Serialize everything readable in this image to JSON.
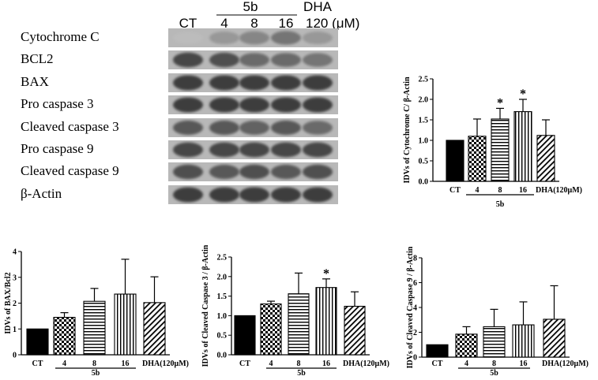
{
  "blot": {
    "header": {
      "ct": "CT",
      "group": "5b",
      "doses": [
        "4",
        "8",
        "16"
      ],
      "dha": "DHA",
      "dha_dose": "120 (μM)"
    },
    "rows": [
      "Cytochrome C",
      "BCL2",
      "BAX",
      "Pro caspase 3",
      "Cleaved caspase 3",
      "Pro caspase 9",
      "Cleaved caspase 9",
      "β-Actin"
    ],
    "band_intensity": [
      [
        0.15,
        0.35,
        0.45,
        0.55,
        0.35
      ],
      [
        0.8,
        0.75,
        0.6,
        0.6,
        0.55
      ],
      [
        0.85,
        0.85,
        0.85,
        0.85,
        0.85
      ],
      [
        0.85,
        0.85,
        0.85,
        0.85,
        0.85
      ],
      [
        0.7,
        0.7,
        0.65,
        0.7,
        0.6
      ],
      [
        0.8,
        0.8,
        0.8,
        0.8,
        0.8
      ],
      [
        0.75,
        0.7,
        0.75,
        0.7,
        0.75
      ],
      [
        0.85,
        0.85,
        0.85,
        0.85,
        0.85
      ]
    ]
  },
  "chart_data": [
    {
      "type": "bar",
      "ylabel": "IDVs of Cytochrome C/ β-Actin",
      "categories": [
        "CT",
        "4",
        "8",
        "16",
        "DHA(120μM)"
      ],
      "group_label": "5b",
      "values": [
        1.0,
        1.1,
        1.52,
        1.7,
        1.12
      ],
      "errors": [
        0,
        0.42,
        0.26,
        0.3,
        0.38
      ],
      "significant": [
        false,
        false,
        true,
        true,
        false
      ],
      "ylim": [
        0,
        2.5
      ],
      "yticks": [
        "0.0",
        "0.5",
        "1.0",
        "1.5",
        "2.0",
        "2.5"
      ],
      "patterns": [
        "solid",
        "checker",
        "hlines",
        "vlines",
        "diagonal"
      ]
    },
    {
      "type": "bar",
      "ylabel": "IDVs of BAX/Bcl2",
      "categories": [
        "CT",
        "4",
        "8",
        "16",
        "DHA(120μM)"
      ],
      "group_label": "5b",
      "values": [
        1.0,
        1.45,
        2.07,
        2.35,
        2.02
      ],
      "errors": [
        0,
        0.18,
        0.5,
        1.35,
        1.0
      ],
      "significant": [
        false,
        false,
        false,
        false,
        false
      ],
      "ylim": [
        0,
        4
      ],
      "yticks": [
        "0",
        "1",
        "2",
        "3",
        "4"
      ],
      "patterns": [
        "solid",
        "checker",
        "hlines",
        "vlines",
        "diagonal"
      ]
    },
    {
      "type": "bar",
      "ylabel": "IDVs of Cleaved Caspase 3 / β-Actin",
      "categories": [
        "CT",
        "4",
        "8",
        "16",
        "DHA(120μM)"
      ],
      "group_label": "5b",
      "values": [
        1.0,
        1.3,
        1.56,
        1.72,
        1.24
      ],
      "errors": [
        0,
        0.07,
        0.53,
        0.22,
        0.37
      ],
      "significant": [
        false,
        false,
        false,
        true,
        false
      ],
      "ylim": [
        0,
        2.5
      ],
      "yticks": [
        "0.0",
        "0.5",
        "1.0",
        "1.5",
        "2.0",
        "2.5"
      ],
      "patterns": [
        "solid",
        "checker",
        "hlines",
        "vlines",
        "diagonal"
      ]
    },
    {
      "type": "bar",
      "ylabel": "IDVs of Cleaved Caspase 9 / β-Actin",
      "categories": [
        "CT",
        "4",
        "8",
        "16",
        "DHA(120μM)"
      ],
      "group_label": "5b",
      "values": [
        1.0,
        1.85,
        2.45,
        2.6,
        3.05
      ],
      "errors": [
        0,
        0.6,
        1.4,
        1.85,
        2.7
      ],
      "significant": [
        false,
        false,
        false,
        false,
        false
      ],
      "ylim": [
        0,
        8
      ],
      "yticks": [
        "0",
        "2",
        "4",
        "6",
        "8"
      ],
      "patterns": [
        "solid",
        "checker",
        "hlines",
        "vlines",
        "diagonal"
      ]
    }
  ]
}
